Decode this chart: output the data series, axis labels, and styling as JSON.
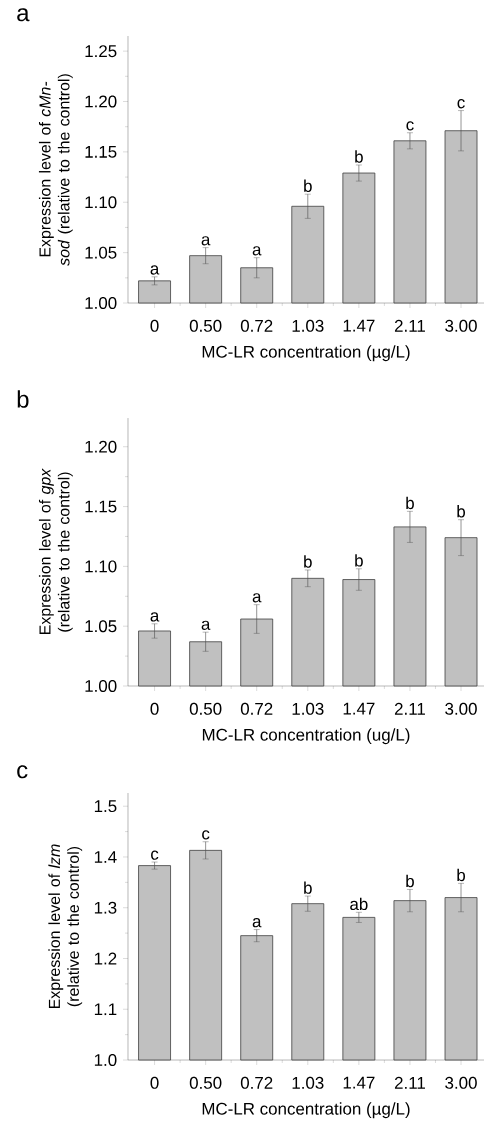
{
  "chart_data": [
    {
      "type": "bar",
      "title": "a",
      "xlabel": "MC-LR concentration (µg/L)",
      "ylabel": "Expression level of *cMn-sod* (relative to the control)",
      "color": "#c0c0c0",
      "categories": [
        "0",
        "0.50",
        "0.72",
        "1.03",
        "1.47",
        "2.11",
        "3.00"
      ],
      "values": [
        1.022,
        1.047,
        1.035,
        1.096,
        1.129,
        1.161,
        1.171
      ],
      "errors": [
        0.004,
        0.008,
        0.01,
        0.012,
        0.008,
        0.008,
        0.02
      ],
      "ylim": [
        1.0,
        1.265
      ],
      "yticks": [
        {
          "value": 1.0,
          "label": "1.00"
        },
        {
          "value": 1.05,
          "label": "1.05"
        },
        {
          "value": 1.1,
          "label": "1.10"
        },
        {
          "value": 1.15,
          "label": "1.15"
        },
        {
          "value": 1.2,
          "label": "1.20"
        },
        {
          "value": 1.25,
          "label": "1.25"
        }
      ],
      "annotations": [
        {
          "text": "a",
          "x": "0",
          "y": 1.026
        },
        {
          "text": "a",
          "x": "0.50",
          "y": 1.055
        },
        {
          "text": "a",
          "x": "0.72",
          "y": 1.045
        },
        {
          "text": "b",
          "x": "1.03",
          "y": 1.108
        },
        {
          "text": "b",
          "x": "1.47",
          "y": 1.137
        },
        {
          "text": "c",
          "x": "2.11",
          "y": 1.169
        },
        {
          "text": "c",
          "x": "3.00",
          "y": 1.191
        }
      ]
    },
    {
      "type": "bar",
      "title": "b",
      "xlabel": "MC-LR concentration (ug/L)",
      "ylabel": "Expression level of *gpx* (relative to the control)",
      "color": "#c0c0c0",
      "categories": [
        "0",
        "0.50",
        "0.72",
        "1.03",
        "1.47",
        "2.11",
        "3.00"
      ],
      "values": [
        1.046,
        1.037,
        1.056,
        1.09,
        1.089,
        1.133,
        1.124
      ],
      "errors": [
        0.006,
        0.008,
        0.012,
        0.007,
        0.009,
        0.013,
        0.015
      ],
      "ylim": [
        1.0,
        1.224
      ],
      "yticks": [
        {
          "value": 1.0,
          "label": "1.00"
        },
        {
          "value": 1.05,
          "label": "1.05"
        },
        {
          "value": 1.1,
          "label": "1.10"
        },
        {
          "value": 1.15,
          "label": "1.15"
        },
        {
          "value": 1.2,
          "label": "1.20"
        }
      ],
      "annotations": [
        {
          "text": "a",
          "x": "0",
          "y": 1.052
        },
        {
          "text": "a",
          "x": "0.50",
          "y": 1.045
        },
        {
          "text": "a",
          "x": "0.72",
          "y": 1.068
        },
        {
          "text": "b",
          "x": "1.03",
          "y": 1.097
        },
        {
          "text": "b",
          "x": "1.47",
          "y": 1.098
        },
        {
          "text": "b",
          "x": "2.11",
          "y": 1.146
        },
        {
          "text": "b",
          "x": "3.00",
          "y": 1.139
        }
      ]
    },
    {
      "type": "bar",
      "title": "c",
      "xlabel": "MC-LR concentration (µg/L)",
      "ylabel": "Expression level of *lzm* (relative to the control)",
      "color": "#c0c0c0",
      "categories": [
        "0",
        "0.50",
        "0.72",
        "1.03",
        "1.47",
        "2.11",
        "3.00"
      ],
      "values": [
        1.383,
        1.413,
        1.245,
        1.308,
        1.281,
        1.314,
        1.32
      ],
      "errors": [
        0.007,
        0.017,
        0.012,
        0.015,
        0.01,
        0.022,
        0.028
      ],
      "ylim": [
        1.0,
        1.526
      ],
      "yticks": [
        {
          "value": 1.0,
          "label": "1.0"
        },
        {
          "value": 1.1,
          "label": "1.1"
        },
        {
          "value": 1.2,
          "label": "1.2"
        },
        {
          "value": 1.3,
          "label": "1.3"
        },
        {
          "value": 1.4,
          "label": "1.4"
        },
        {
          "value": 1.5,
          "label": "1.5"
        }
      ],
      "annotations": [
        {
          "text": "c",
          "x": "0",
          "y": 1.39
        },
        {
          "text": "c",
          "x": "0.50",
          "y": 1.43
        },
        {
          "text": "a",
          "x": "0.72",
          "y": 1.257
        },
        {
          "text": "b",
          "x": "1.03",
          "y": 1.323
        },
        {
          "text": "ab",
          "x": "1.47",
          "y": 1.291
        },
        {
          "text": "b",
          "x": "2.11",
          "y": 1.336
        },
        {
          "text": "b",
          "x": "3.00",
          "y": 1.348
        }
      ]
    }
  ]
}
